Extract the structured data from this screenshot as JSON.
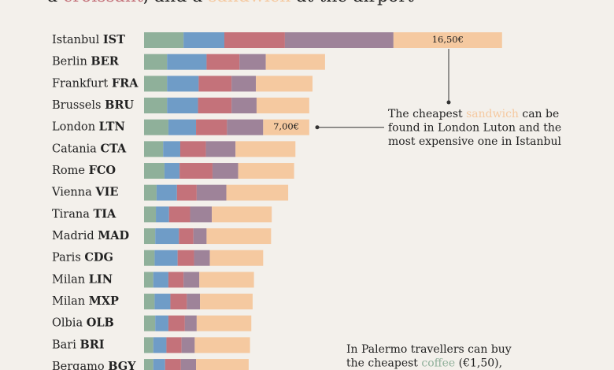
{
  "chart_data": {
    "type": "stacked-bar",
    "title": [
      "a ",
      "croissant",
      ", and a ",
      "sandwich",
      " at the airport"
    ],
    "categories": [
      "Istanbul IST",
      "Berlin BER",
      "Frankfurt FRA",
      "Brussels BRU",
      "London LTN",
      "Catania CTA",
      "Rome FCO",
      "Vienna VIE",
      "Tirana TIA",
      "Madrid MAD",
      "Paris CDG",
      "Milan LIN",
      "Milan MXP",
      "Olbia OLB",
      "Bari BRI",
      "Bergamo BGY"
    ],
    "series": [
      {
        "name": "coffee",
        "color": "#8fb09a",
        "values": [
          6.0,
          3.5,
          3.5,
          3.5,
          3.7,
          2.9,
          3.1,
          1.9,
          1.8,
          1.7,
          1.6,
          1.4,
          1.6,
          1.7,
          1.4,
          1.4
        ]
      },
      {
        "color": "#6f9cc7",
        "values": [
          6.2,
          6.0,
          4.8,
          4.7,
          4.2,
          2.6,
          2.3,
          3.1,
          2.0,
          3.6,
          3.5,
          2.3,
          2.4,
          2.0,
          2.0,
          1.8
        ]
      },
      {
        "name": "croissant",
        "color": "#c4727a",
        "values": [
          9.2,
          5.0,
          5.0,
          5.1,
          4.7,
          3.9,
          5.0,
          3.0,
          3.2,
          2.2,
          2.5,
          2.3,
          2.5,
          2.5,
          2.3,
          2.4
        ]
      },
      {
        "color": "#9e8399",
        "values": [
          16.5,
          4.0,
          3.7,
          3.8,
          5.5,
          4.5,
          3.9,
          4.5,
          3.3,
          2.0,
          2.4,
          2.4,
          2.0,
          1.8,
          2.0,
          2.3
        ]
      },
      {
        "name": "sandwich",
        "color": "#f5c9a0",
        "values": [
          16.5,
          9.0,
          8.6,
          8.0,
          7.0,
          9.1,
          8.5,
          9.4,
          9.1,
          9.8,
          8.1,
          8.3,
          8.0,
          8.3,
          8.4,
          8.0
        ],
        "value_labels": [
          "16,50€",
          null,
          null,
          null,
          "7,00€",
          null,
          null,
          null,
          null,
          null,
          null,
          null,
          null,
          null,
          null,
          null
        ]
      }
    ],
    "annotations": [
      {
        "lines": [
          [
            "The cheapest ",
            "sandwich",
            " can be"
          ],
          [
            "found in London Luton and the"
          ],
          [
            "most expensive one in Istanbul"
          ]
        ]
      },
      {
        "lines": [
          [
            "In Palermo travellers can buy"
          ],
          [
            "the cheapest ",
            "coffee",
            " (€1,50),"
          ]
        ]
      }
    ]
  }
}
